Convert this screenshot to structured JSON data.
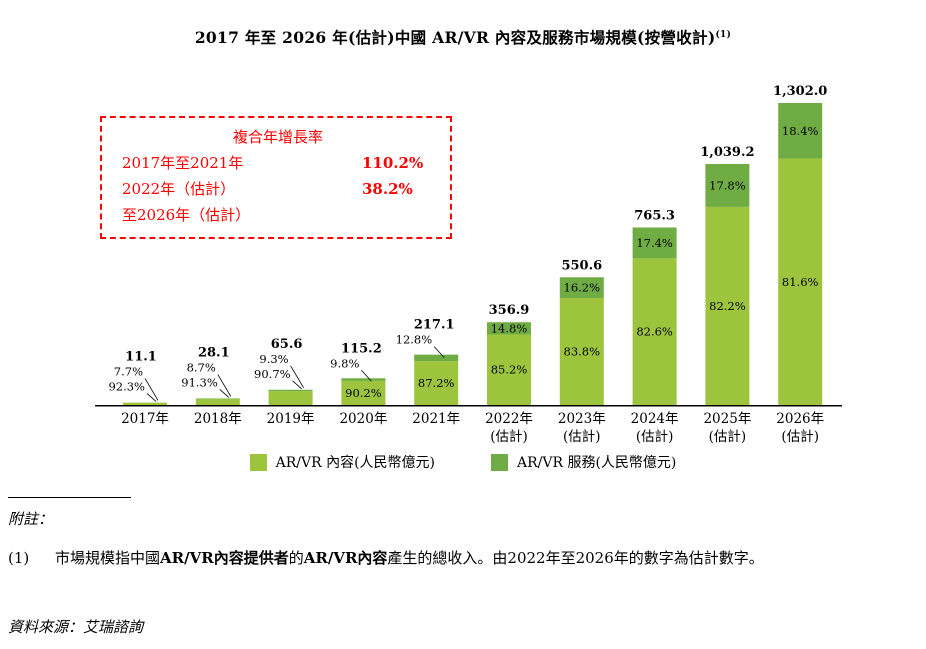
{
  "page": {
    "title": "2017 年至 2026 年(估計)中國 AR/VR 內容及服務市場規模(按營收計)",
    "title_note_ref": "(1)"
  },
  "chart_data": {
    "type": "bar",
    "stacked": true,
    "title": "2017 年至 2026 年(估計)中國 AR/VR 內容及服務市場規模(按營收計)",
    "unit": "人民幣億元",
    "ylim": [
      0,
      1302
    ],
    "grid": false,
    "legend_position": "bottom",
    "colors": {
      "content": "#9CC43D",
      "service": "#6FAC43",
      "accent_red": "#FF0000"
    },
    "legend": [
      {
        "label": "AR/VR 內容(人民幣億元)",
        "color_key": "content"
      },
      {
        "label": "AR/VR 服務(人民幣億元)",
        "color_key": "service"
      }
    ],
    "categories": [
      "2017年",
      "2018年",
      "2019年",
      "2020年",
      "2021年",
      "2022年(估計)",
      "2023年(估計)",
      "2024年(估計)",
      "2025年(估計)",
      "2026年(估計)"
    ],
    "bars": [
      {
        "year": "2017年",
        "year2": "",
        "total": 11.1,
        "total_display": "11.1",
        "content_pct": 92.3,
        "service_pct": 7.7,
        "content_display": "92.3%",
        "service_display": "7.7%",
        "mode": "out"
      },
      {
        "year": "2018年",
        "year2": "",
        "total": 28.1,
        "total_display": "28.1",
        "content_pct": 91.3,
        "service_pct": 8.7,
        "content_display": "91.3%",
        "service_display": "8.7%",
        "mode": "out"
      },
      {
        "year": "2019年",
        "year2": "",
        "total": 65.6,
        "total_display": "65.6",
        "content_pct": 90.7,
        "service_pct": 9.3,
        "content_display": "90.7%",
        "service_display": "9.3%",
        "mode": "out"
      },
      {
        "year": "2020年",
        "year2": "",
        "total": 115.2,
        "total_display": "115.2",
        "content_pct": 90.2,
        "service_pct": 9.8,
        "content_display": "90.2%",
        "service_display": "9.8%",
        "mode": "svc_out"
      },
      {
        "year": "2021年",
        "year2": "",
        "total": 217.1,
        "total_display": "217.1",
        "content_pct": 87.2,
        "service_pct": 12.8,
        "content_display": "87.2%",
        "service_display": "12.8%",
        "mode": "svc_out"
      },
      {
        "year": "2022年",
        "year2": "(估計)",
        "total": 356.9,
        "total_display": "356.9",
        "content_pct": 85.2,
        "service_pct": 14.8,
        "content_display": "85.2%",
        "service_display": "14.8%",
        "mode": "in"
      },
      {
        "year": "2023年",
        "year2": "(估計)",
        "total": 550.6,
        "total_display": "550.6",
        "content_pct": 83.8,
        "service_pct": 16.2,
        "content_display": "83.8%",
        "service_display": "16.2%",
        "mode": "in"
      },
      {
        "year": "2024年",
        "year2": "(估計)",
        "total": 765.3,
        "total_display": "765.3",
        "content_pct": 82.6,
        "service_pct": 17.4,
        "content_display": "82.6%",
        "service_display": "17.4%",
        "mode": "in"
      },
      {
        "year": "2025年",
        "year2": "(估計)",
        "total": 1039.2,
        "total_display": "1,039.2",
        "content_pct": 82.2,
        "service_pct": 17.8,
        "content_display": "82.2%",
        "service_display": "17.8%",
        "mode": "in"
      },
      {
        "year": "2026年",
        "year2": "(估計)",
        "total": 1302.0,
        "total_display": "1,302.0",
        "content_pct": 81.6,
        "service_pct": 18.4,
        "content_display": "81.6%",
        "service_display": "18.4%",
        "mode": "in"
      }
    ],
    "cagr_box": {
      "title": "複合年增長率",
      "rows": [
        {
          "label": "2017年至2021年",
          "value": "110.2%"
        },
        {
          "label": "2022年（估計）",
          "value": "38.2%"
        },
        {
          "label": "至2026年（估計）",
          "value": ""
        }
      ]
    }
  },
  "notes": {
    "heading": "附註：",
    "items": [
      {
        "num": "(1)",
        "segments": [
          {
            "text": "市場規模指中國",
            "bold": false
          },
          {
            "text": "AR/VR內容提供者",
            "bold": true
          },
          {
            "text": "的",
            "bold": false
          },
          {
            "text": "AR/VR內容",
            "bold": true
          },
          {
            "text": "產生的總收入。由2022年至2026年的數字為估計數字。",
            "bold": false
          }
        ]
      }
    ],
    "source": "資料來源：艾瑞諮詢"
  }
}
